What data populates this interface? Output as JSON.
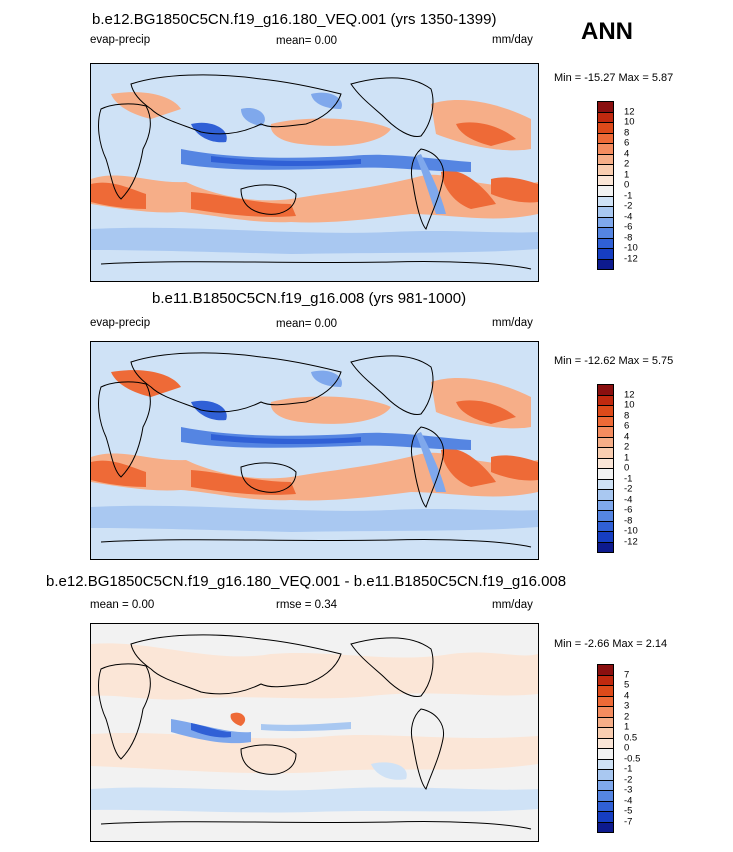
{
  "season": "ANN",
  "panels": [
    {
      "title": "b.e12.BG1850C5CN.f19_g16.180_VEQ.001 (yrs 1350-1399)",
      "left_label": "evap-precip",
      "center_label": "mean=  0.00",
      "units": "mm/day",
      "minmax": "Min = -15.27 Max =  5.87"
    },
    {
      "title": "b.e11.B1850C5CN.f19_g16.008 (yrs 981-1000)",
      "left_label": "evap-precip",
      "center_label": "mean=  0.00",
      "units": "mm/day",
      "minmax": "Min = -12.62 Max =  5.75"
    },
    {
      "title": "b.e12.BG1850C5CN.f19_g16.180_VEQ.001 - b.e11.B1850C5CN.f19_g16.008",
      "left_label": "mean =  0.00",
      "center_label": "rmse =  0.34",
      "units": "mm/day",
      "minmax": "Min = -2.66 Max =  2.14"
    }
  ],
  "colorbar_main": {
    "labels": [
      "12",
      "10",
      "8",
      "6",
      "4",
      "2",
      "1",
      "0",
      "-1",
      "-2",
      "-4",
      "-6",
      "-8",
      "-10",
      "-12"
    ],
    "colors": [
      "#8a0f0f",
      "#c0290f",
      "#dd4a1a",
      "#ee6a37",
      "#f48c5f",
      "#f6ae88",
      "#f9cdb0",
      "#fbe6d7",
      "#f2f2f2",
      "#cfe2f6",
      "#a9c8f1",
      "#7fa8ec",
      "#5585e2",
      "#3060d6",
      "#163ec2",
      "#0d1a8e"
    ]
  },
  "colorbar_diff": {
    "labels": [
      "7",
      "5",
      "4",
      "3",
      "2",
      "1",
      "0.5",
      "0",
      "-0.5",
      "-1",
      "-2",
      "-3",
      "-4",
      "-5",
      "-7"
    ],
    "colors": [
      "#8a0f0f",
      "#c0290f",
      "#dd4a1a",
      "#ee6a37",
      "#f48c5f",
      "#f6ae88",
      "#f9cdb0",
      "#fbe6d7",
      "#f2f2f2",
      "#cfe2f6",
      "#a9c8f1",
      "#7fa8ec",
      "#5585e2",
      "#3060d6",
      "#163ec2",
      "#0d1a8e"
    ]
  }
}
